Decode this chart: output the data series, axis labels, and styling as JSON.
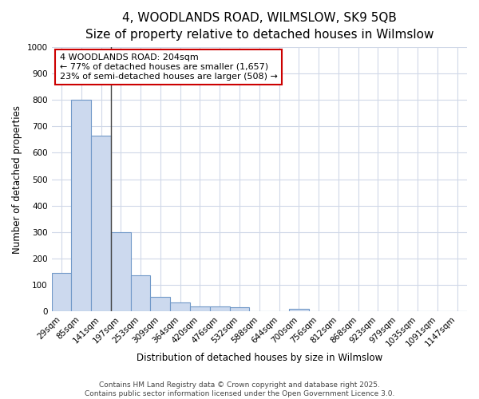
{
  "title_line1": "4, WOODLANDS ROAD, WILMSLOW, SK9 5QB",
  "title_line2": "Size of property relative to detached houses in Wilmslow",
  "xlabel": "Distribution of detached houses by size in Wilmslow",
  "ylabel": "Number of detached properties",
  "categories": [
    "29sqm",
    "85sqm",
    "141sqm",
    "197sqm",
    "253sqm",
    "309sqm",
    "364sqm",
    "420sqm",
    "476sqm",
    "532sqm",
    "588sqm",
    "644sqm",
    "700sqm",
    "756sqm",
    "812sqm",
    "868sqm",
    "923sqm",
    "979sqm",
    "1035sqm",
    "1091sqm",
    "1147sqm"
  ],
  "values": [
    145,
    800,
    665,
    300,
    135,
    55,
    32,
    18,
    18,
    15,
    0,
    0,
    10,
    0,
    0,
    0,
    0,
    0,
    0,
    0,
    0
  ],
  "bar_color": "#ccd9ee",
  "bar_edge_color": "#7098c8",
  "bg_color": "#ffffff",
  "grid_color": "#d0d8e8",
  "annotation_box_text": "4 WOODLANDS ROAD: 204sqm\n← 77% of detached houses are smaller (1,657)\n23% of semi-detached houses are larger (508) →",
  "annotation_box_color": "#cc0000",
  "property_line_x": 2.5,
  "ylim": [
    0,
    1000
  ],
  "yticks": [
    0,
    100,
    200,
    300,
    400,
    500,
    600,
    700,
    800,
    900,
    1000
  ],
  "footer_line1": "Contains HM Land Registry data © Crown copyright and database right 2025.",
  "footer_line2": "Contains public sector information licensed under the Open Government Licence 3.0.",
  "title_fontsize": 11,
  "subtitle_fontsize": 9.5,
  "axis_label_fontsize": 8.5,
  "tick_fontsize": 7.5,
  "annotation_fontsize": 8,
  "footer_fontsize": 6.5
}
